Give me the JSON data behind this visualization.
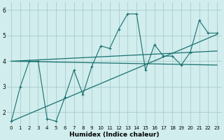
{
  "xlabel": "Humidex (Indice chaleur)",
  "bg_color": "#d1eded",
  "line_color": "#1a7070",
  "grid_color": "#aacccc",
  "xlim": [
    -0.5,
    23.5
  ],
  "ylim": [
    1.5,
    6.3
  ],
  "xticks": [
    0,
    1,
    2,
    3,
    4,
    5,
    6,
    7,
    8,
    9,
    10,
    11,
    12,
    13,
    14,
    15,
    16,
    17,
    18,
    19,
    20,
    21,
    22,
    23
  ],
  "yticks": [
    2,
    3,
    4,
    5,
    6
  ],
  "series1_x": [
    0,
    1,
    2,
    3,
    4,
    5,
    6,
    7,
    8,
    9,
    10,
    11,
    12,
    13,
    14,
    15,
    16,
    17,
    18,
    19,
    20,
    21,
    22,
    23
  ],
  "series1_y": [
    1.65,
    3.0,
    4.0,
    4.0,
    1.75,
    1.65,
    2.6,
    3.65,
    2.7,
    3.8,
    4.6,
    4.5,
    5.25,
    5.85,
    5.85,
    3.65,
    4.65,
    4.2,
    4.2,
    3.85,
    4.35,
    5.6,
    5.1,
    5.1
  ],
  "series2_x": [
    0,
    23
  ],
  "series2_y": [
    4.0,
    4.4
  ],
  "series3_x": [
    0,
    23
  ],
  "series3_y": [
    1.65,
    5.05
  ],
  "series4_x": [
    0,
    23
  ],
  "series4_y": [
    4.0,
    3.85
  ],
  "tick_fontsize": 5.0,
  "xlabel_fontsize": 6.5
}
